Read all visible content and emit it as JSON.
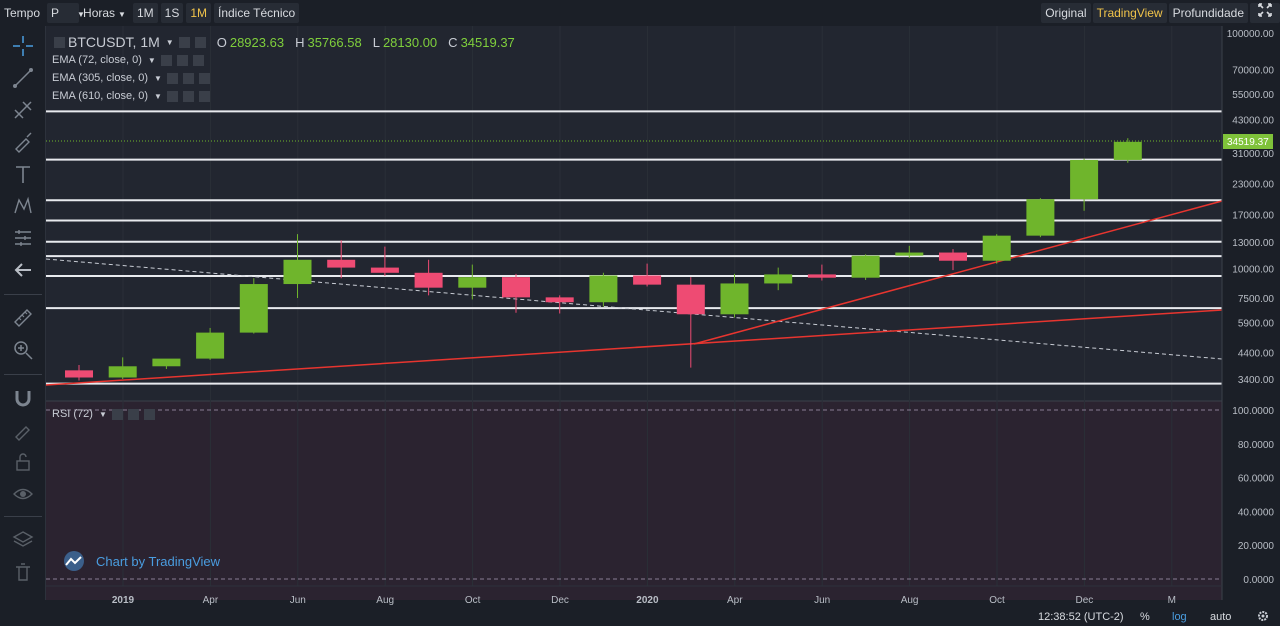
{
  "toolbar": {
    "tempo_label": "Tempo",
    "tempo_value": "P",
    "horas_label": "Horas",
    "interval_1m_upper": "1M",
    "interval_1s": "1S",
    "interval_1m_selected": "1M",
    "indicators_label": "Índice Técnico",
    "original_label": "Original",
    "tradingview_label": "TradingView",
    "depth_label": "Profundidade"
  },
  "legend": {
    "symbol": "BTCUSDT, 1M",
    "open_key": "O",
    "open_value": "28923.63",
    "high_key": "H",
    "high_value": "35766.58",
    "low_key": "L",
    "low_value": "28130.00",
    "close_key": "C",
    "close_value": "34519.37",
    "ema1": "EMA (72, close, 0)",
    "ema2": "EMA (305, close, 0)",
    "ema3": "EMA (610, close, 0)",
    "rsi": "RSI (72)"
  },
  "watermark": "Chart by TradingView",
  "bottom": {
    "time": "12:38:52 (UTC-2)",
    "percent": "%",
    "log": "log",
    "auto": "auto"
  },
  "colors": {
    "up": "#6fb52c",
    "down": "#ee4b73",
    "accent": "#f0c34a",
    "trend": "#e8352f",
    "last_price_bg": "#7fc23a"
  },
  "chart_data": {
    "type": "candlestick",
    "title": "BTCUSDT, 1M",
    "y_scale": "log",
    "last_price": "34519.37",
    "y_ticks": [
      "100000.00",
      "70000.00",
      "55000.00",
      "43000.00",
      "31000.00",
      "23000.00",
      "17000.00",
      "13000.00",
      "10000.00",
      "7500.00",
      "5900.00",
      "4400.00",
      "3400.00"
    ],
    "x_labels": [
      "2019",
      "Apr",
      "Jun",
      "Aug",
      "Oct",
      "Dec",
      "2020",
      "Apr",
      "Jun",
      "Aug",
      "Oct",
      "Dec",
      "M"
    ],
    "candles": [
      {
        "t": "2019-01",
        "o": 3700,
        "h": 3900,
        "l": 3350,
        "c": 3450
      },
      {
        "t": "2019-02",
        "o": 3450,
        "h": 4200,
        "l": 3400,
        "c": 3850
      },
      {
        "t": "2019-03",
        "o": 3850,
        "h": 4100,
        "l": 3750,
        "c": 4150
      },
      {
        "t": "2019-04",
        "o": 4150,
        "h": 5600,
        "l": 4100,
        "c": 5350
      },
      {
        "t": "2019-05",
        "o": 5350,
        "h": 9100,
        "l": 5300,
        "c": 8600
      },
      {
        "t": "2019-06",
        "o": 8600,
        "h": 14000,
        "l": 7500,
        "c": 10900
      },
      {
        "t": "2019-07",
        "o": 10900,
        "h": 13200,
        "l": 9100,
        "c": 10100
      },
      {
        "t": "2019-08",
        "o": 10100,
        "h": 12400,
        "l": 9300,
        "c": 9600
      },
      {
        "t": "2019-09",
        "o": 9600,
        "h": 10900,
        "l": 7700,
        "c": 8300
      },
      {
        "t": "2019-10",
        "o": 8300,
        "h": 10400,
        "l": 7400,
        "c": 9200
      },
      {
        "t": "2019-11",
        "o": 9200,
        "h": 9500,
        "l": 6500,
        "c": 7550
      },
      {
        "t": "2019-12",
        "o": 7550,
        "h": 7700,
        "l": 6450,
        "c": 7200
      },
      {
        "t": "2020-01",
        "o": 7200,
        "h": 9600,
        "l": 6900,
        "c": 9350
      },
      {
        "t": "2020-02",
        "o": 9350,
        "h": 10500,
        "l": 8400,
        "c": 8550
      },
      {
        "t": "2020-03",
        "o": 8550,
        "h": 9200,
        "l": 3800,
        "c": 6400
      },
      {
        "t": "2020-04",
        "o": 6400,
        "h": 9500,
        "l": 6200,
        "c": 8650
      },
      {
        "t": "2020-05",
        "o": 8650,
        "h": 10100,
        "l": 8100,
        "c": 9450
      },
      {
        "t": "2020-06",
        "o": 9450,
        "h": 10400,
        "l": 8900,
        "c": 9150
      },
      {
        "t": "2020-07",
        "o": 9150,
        "h": 11500,
        "l": 8950,
        "c": 11350
      },
      {
        "t": "2020-08",
        "o": 11350,
        "h": 12500,
        "l": 11100,
        "c": 11700
      },
      {
        "t": "2020-09",
        "o": 11700,
        "h": 12100,
        "l": 9850,
        "c": 10800
      },
      {
        "t": "2020-10",
        "o": 10800,
        "h": 14000,
        "l": 10500,
        "c": 13800
      },
      {
        "t": "2020-11",
        "o": 13800,
        "h": 19900,
        "l": 13600,
        "c": 19700
      },
      {
        "t": "2020-12",
        "o": 19700,
        "h": 29300,
        "l": 17600,
        "c": 28920
      },
      {
        "t": "2021-01",
        "o": 28923.63,
        "h": 35766.58,
        "l": 28130,
        "c": 34519.37
      }
    ],
    "horizontal_levels": [
      46500,
      29000,
      19500,
      16000,
      13000,
      11300,
      9300,
      6800,
      3250
    ],
    "rsi_ticks": [
      "100.0000",
      "80.0000",
      "60.0000",
      "40.0000",
      "20.0000",
      "0.0000"
    ]
  }
}
